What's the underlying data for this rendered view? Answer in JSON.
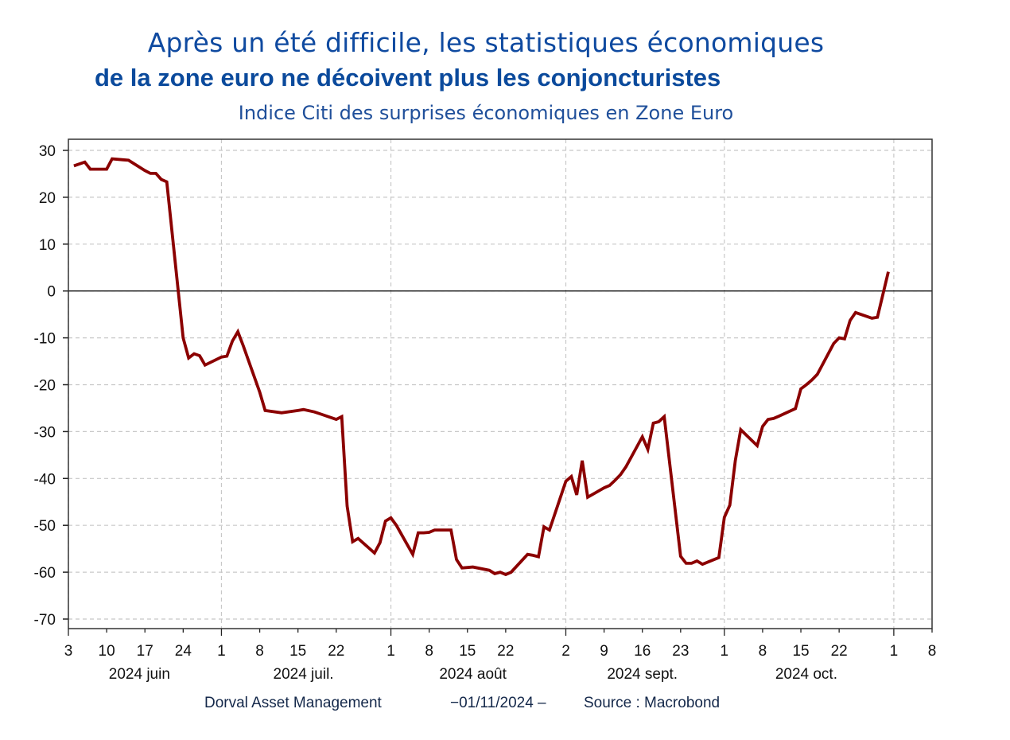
{
  "header": {
    "title_line1": "Après un été difficile, les statistiques économiques",
    "title_line2": "de la zone euro ne décoivent plus les conjoncturistes",
    "subtitle": "Indice Citi des surprises économiques en Zone Euro"
  },
  "footer": {
    "company": "Dorval Asset Management",
    "date": "−01/11/2024  –",
    "source": "Source : Macrobond"
  },
  "colors": {
    "line": "#8b0000",
    "title": "#0f4aa0",
    "grid": "#c8c8c8",
    "axis": "#222222"
  },
  "chart_data": {
    "type": "line",
    "title": "Indice Citi des surprises économiques en Zone Euro",
    "xlabel": "",
    "ylabel": "",
    "ylim": [
      -72,
      32
    ],
    "xlim": [
      "2024-06-03",
      "2024-11-08"
    ],
    "grid": true,
    "zero_line": true,
    "yticks": [
      30,
      20,
      10,
      0,
      -10,
      -20,
      -30,
      -40,
      -50,
      -60,
      -70
    ],
    "ytick_labels": [
      "30",
      "20",
      "10",
      "0",
      "-10",
      "-20",
      "-30",
      "-40",
      "-50",
      "-60",
      "-70"
    ],
    "xticks": [
      {
        "date": "2024-06-03",
        "label": "3"
      },
      {
        "date": "2024-06-10",
        "label": "10"
      },
      {
        "date": "2024-06-17",
        "label": "17"
      },
      {
        "date": "2024-06-24",
        "label": "24"
      },
      {
        "date": "2024-07-01",
        "label": "1"
      },
      {
        "date": "2024-07-08",
        "label": "8"
      },
      {
        "date": "2024-07-15",
        "label": "15"
      },
      {
        "date": "2024-07-22",
        "label": "22"
      },
      {
        "date": "2024-08-01",
        "label": "1"
      },
      {
        "date": "2024-08-08",
        "label": "8"
      },
      {
        "date": "2024-08-15",
        "label": "15"
      },
      {
        "date": "2024-08-22",
        "label": "22"
      },
      {
        "date": "2024-09-02",
        "label": "2"
      },
      {
        "date": "2024-09-09",
        "label": "9"
      },
      {
        "date": "2024-09-16",
        "label": "16"
      },
      {
        "date": "2024-09-23",
        "label": "23"
      },
      {
        "date": "2024-10-01",
        "label": "1"
      },
      {
        "date": "2024-10-08",
        "label": "8"
      },
      {
        "date": "2024-10-15",
        "label": "15"
      },
      {
        "date": "2024-10-22",
        "label": "22"
      },
      {
        "date": "2024-11-01",
        "label": "1"
      },
      {
        "date": "2024-11-08",
        "label": "8"
      }
    ],
    "month_labels": [
      {
        "date": "2024-06-16",
        "label": "2024 juin"
      },
      {
        "date": "2024-07-16",
        "label": "2024 juil."
      },
      {
        "date": "2024-08-16",
        "label": "2024 août"
      },
      {
        "date": "2024-09-16",
        "label": "2024 sept."
      },
      {
        "date": "2024-10-16",
        "label": "2024 oct."
      }
    ],
    "major_ticks": [
      "2024-06-03",
      "2024-07-01",
      "2024-08-01",
      "2024-09-02",
      "2024-10-01",
      "2024-11-01"
    ],
    "series": [
      {
        "name": "Indice Citi des surprises économiques en Zone Euro",
        "x": [
          "2024-06-04",
          "2024-06-06",
          "2024-06-07",
          "2024-06-10",
          "2024-06-11",
          "2024-06-13",
          "2024-06-14",
          "2024-06-17",
          "2024-06-18",
          "2024-06-19",
          "2024-06-20",
          "2024-06-21",
          "2024-06-24",
          "2024-06-25",
          "2024-06-26",
          "2024-06-27",
          "2024-06-28",
          "2024-07-01",
          "2024-07-02",
          "2024-07-03",
          "2024-07-04",
          "2024-07-05",
          "2024-07-08",
          "2024-07-09",
          "2024-07-12",
          "2024-07-15",
          "2024-07-16",
          "2024-07-18",
          "2024-07-19",
          "2024-07-22",
          "2024-07-23",
          "2024-07-24",
          "2024-07-25",
          "2024-07-26",
          "2024-07-29",
          "2024-07-30",
          "2024-07-31",
          "2024-08-01",
          "2024-08-02",
          "2024-08-05",
          "2024-08-06",
          "2024-08-07",
          "2024-08-08",
          "2024-08-09",
          "2024-08-12",
          "2024-08-13",
          "2024-08-14",
          "2024-08-15",
          "2024-08-16",
          "2024-08-19",
          "2024-08-20",
          "2024-08-21",
          "2024-08-22",
          "2024-08-23",
          "2024-08-26",
          "2024-08-27",
          "2024-08-28",
          "2024-08-29",
          "2024-08-30",
          "2024-09-02",
          "2024-09-03",
          "2024-09-04",
          "2024-09-05",
          "2024-09-06",
          "2024-09-09",
          "2024-09-10",
          "2024-09-11",
          "2024-09-12",
          "2024-09-13",
          "2024-09-16",
          "2024-09-17",
          "2024-09-18",
          "2024-09-19",
          "2024-09-20",
          "2024-09-23",
          "2024-09-24",
          "2024-09-25",
          "2024-09-26",
          "2024-09-27",
          "2024-09-30",
          "2024-10-01",
          "2024-10-02",
          "2024-10-03",
          "2024-10-04",
          "2024-10-07",
          "2024-10-08",
          "2024-10-09",
          "2024-10-10",
          "2024-10-11",
          "2024-10-14",
          "2024-10-15",
          "2024-10-16",
          "2024-10-17",
          "2024-10-18",
          "2024-10-21",
          "2024-10-22",
          "2024-10-23",
          "2024-10-24",
          "2024-10-25",
          "2024-10-28",
          "2024-10-29",
          "2024-10-31"
        ],
        "values": [
          26.7,
          27.5,
          26.0,
          26.0,
          28.2,
          28.0,
          27.9,
          25.7,
          25.1,
          25.1,
          23.8,
          23.3,
          -10.0,
          -14.3,
          -13.4,
          -13.8,
          -15.8,
          -14.1,
          -13.9,
          -10.7,
          -8.7,
          -11.7,
          -21.6,
          -25.5,
          -26.0,
          -25.5,
          -25.3,
          -25.8,
          -26.2,
          -27.4,
          -26.8,
          -45.9,
          -53.5,
          -52.8,
          -55.9,
          -53.7,
          -49.1,
          -48.4,
          -50.0,
          -56.2,
          -51.6,
          -51.6,
          -51.5,
          -51.0,
          -51.0,
          -57.3,
          -59.1,
          -59.0,
          -58.9,
          -59.6,
          -60.3,
          -60.0,
          -60.5,
          -60.0,
          -56.2,
          -56.4,
          -56.7,
          -50.3,
          -51.0,
          -40.6,
          -39.6,
          -43.5,
          -36.2,
          -44.0,
          -42.0,
          -41.5,
          -40.4,
          -39.2,
          -37.5,
          -31.1,
          -33.8,
          -28.2,
          -27.9,
          -26.8,
          -56.6,
          -58.1,
          -58.1,
          -57.6,
          -58.3,
          -56.9,
          -48.3,
          -45.7,
          -36.2,
          -29.6,
          -33.0,
          -28.9,
          -27.4,
          -27.2,
          -26.7,
          -25.1,
          -20.9,
          -20.0,
          -19.0,
          -17.8,
          -11.2,
          -10.0,
          -10.2,
          -6.3,
          -4.6,
          -5.8,
          -5.6,
          4.1
        ]
      }
    ]
  }
}
